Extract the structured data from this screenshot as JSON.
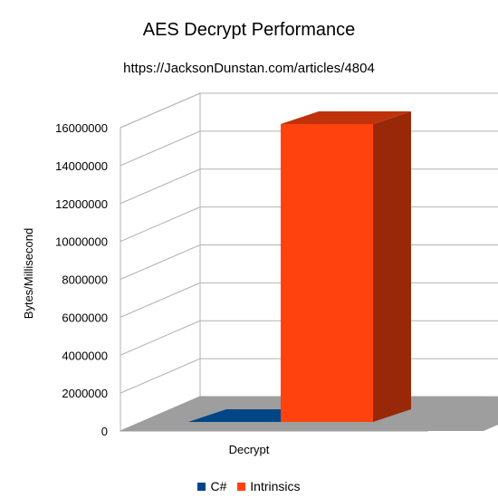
{
  "chart_data": {
    "type": "bar",
    "title": "AES Decrypt Performance",
    "subtitle": "https://JacksonDunstan.com/articles/4804",
    "xlabel": "",
    "ylabel": "Bytes/Millisecond",
    "categories": [
      "Decrypt"
    ],
    "series": [
      {
        "name": "C#",
        "values": [
          0
        ],
        "color": "#004586"
      },
      {
        "name": "Intrinsics",
        "values": [
          16000000
        ],
        "color": "#ff420e"
      }
    ],
    "ylim": [
      0,
      16000000
    ],
    "yticks": [
      "0",
      "2000000",
      "4000000",
      "6000000",
      "8000000",
      "10000000",
      "12000000",
      "14000000",
      "16000000"
    ],
    "grid": true,
    "three_d": true,
    "legend_position": "bottom"
  }
}
